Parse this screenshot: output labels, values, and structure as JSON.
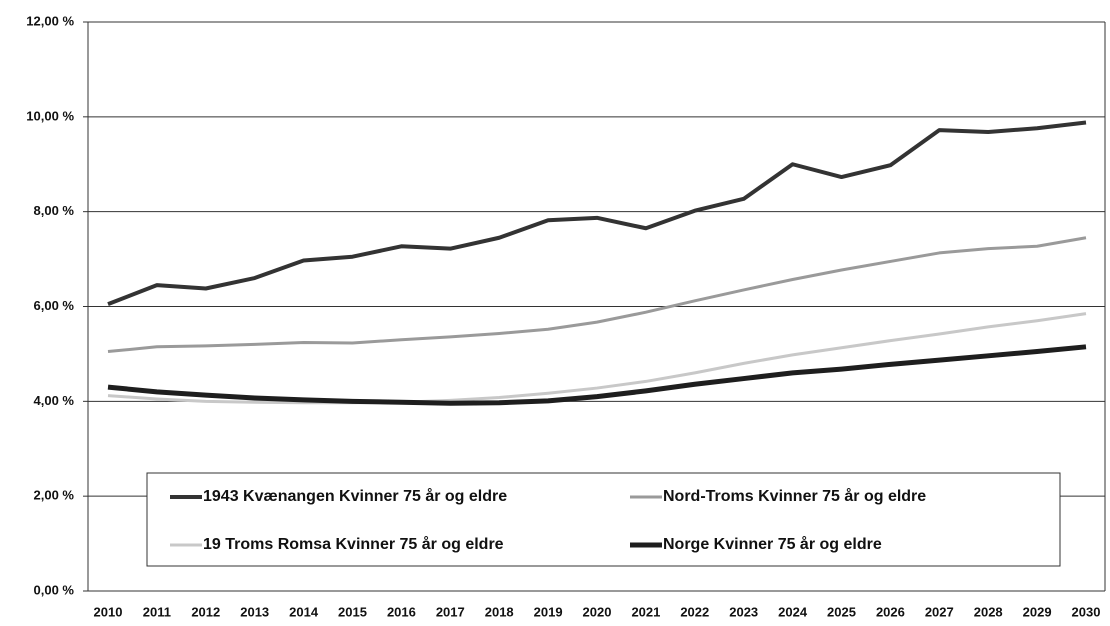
{
  "chart_data": {
    "type": "line",
    "categories": [
      "2010",
      "2011",
      "2012",
      "2013",
      "2014",
      "2015",
      "2016",
      "2017",
      "2018",
      "2019",
      "2020",
      "2021",
      "2022",
      "2023",
      "2024",
      "2025",
      "2026",
      "2027",
      "2028",
      "2029",
      "2030"
    ],
    "series": [
      {
        "name": "1943 Kvænangen Kvinner 75 år og eldre",
        "color": "#333333",
        "values": [
          6.05,
          6.45,
          6.38,
          6.6,
          6.97,
          7.05,
          7.27,
          7.22,
          7.45,
          7.82,
          7.87,
          7.65,
          8.02,
          8.27,
          9.0,
          8.73,
          8.98,
          9.72,
          9.68,
          9.76,
          9.88
        ]
      },
      {
        "name": "Nord-Troms Kvinner 75 år og eldre",
        "color": "#9a9a9a",
        "values": [
          5.05,
          5.15,
          5.17,
          5.2,
          5.24,
          5.23,
          5.3,
          5.36,
          5.43,
          5.52,
          5.67,
          5.88,
          6.12,
          6.35,
          6.57,
          6.77,
          6.95,
          7.13,
          7.22,
          7.27,
          7.45
        ]
      },
      {
        "name": "19 Troms Romsa Kvinner 75 år og eldre",
        "color": "#c8c8c8",
        "values": [
          4.12,
          4.05,
          4.0,
          3.98,
          3.97,
          3.97,
          3.98,
          4.02,
          4.08,
          4.17,
          4.28,
          4.42,
          4.6,
          4.8,
          4.98,
          5.13,
          5.28,
          5.42,
          5.57,
          5.7,
          5.85
        ]
      },
      {
        "name": "Norge Kvinner 75 år og eldre",
        "color": "#1e1e1e",
        "values": [
          4.3,
          4.2,
          4.13,
          4.07,
          4.03,
          4.0,
          3.98,
          3.96,
          3.97,
          4.01,
          4.1,
          4.22,
          4.36,
          4.48,
          4.6,
          4.68,
          4.78,
          4.87,
          4.96,
          5.05,
          5.15
        ]
      }
    ],
    "ylim": [
      0,
      12
    ],
    "yticks": [
      {
        "value": 0,
        "label": "0,00 %"
      },
      {
        "value": 2,
        "label": "2,00 %"
      },
      {
        "value": 4,
        "label": "4,00 %"
      },
      {
        "value": 6,
        "label": "6,00 %"
      },
      {
        "value": 8,
        "label": "8,00 %"
      },
      {
        "value": 10,
        "label": "10,00 %"
      },
      {
        "value": 12,
        "label": "12,00 %"
      }
    ],
    "grid": true
  }
}
